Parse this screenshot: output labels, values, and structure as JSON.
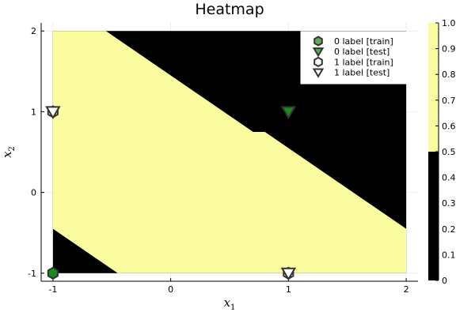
{
  "chart_data": {
    "type": "heatmap",
    "title": "Heatmap",
    "xlabel_base": "x",
    "xlabel_sub": "1",
    "ylabel_base": "x",
    "ylabel_sub": "2",
    "xlim": [
      -1.1,
      2.1
    ],
    "ylim": [
      -1.1,
      2.1
    ],
    "xticks": [
      -1,
      0,
      1,
      2
    ],
    "yticks": [
      -1,
      0,
      1,
      2
    ],
    "grid": true,
    "heatmap": {
      "domain_x": [
        -1,
        2
      ],
      "domain_y": [
        -1,
        2
      ],
      "background_value": 0,
      "regions": [
        {
          "value": 1,
          "polygon": [
            [
              -1,
              2
            ],
            [
              -0.55,
              2
            ],
            [
              0.7,
              0.75
            ],
            [
              0.8,
              0.75
            ],
            [
              2,
              -0.45
            ],
            [
              2,
              -1
            ],
            [
              -0.45,
              -1
            ],
            [
              -1,
              -0.45
            ]
          ]
        }
      ]
    },
    "colorbar": {
      "min": 0,
      "max": 1,
      "ticks": [
        0,
        0.1,
        0.2,
        0.3,
        0.4,
        0.5,
        0.6,
        0.7,
        0.8,
        0.9,
        1.0
      ],
      "tick_labels": [
        "0",
        "0.1",
        "0.2",
        "0.3",
        "0.4",
        "0.5",
        "0.6",
        "0.7",
        "0.8",
        "0.9",
        "1.0"
      ],
      "levels": [
        {
          "from": 0,
          "to": 0.5,
          "color": "#000000"
        },
        {
          "from": 0.5,
          "to": 1.0,
          "color": "#fbfca0"
        }
      ]
    },
    "series": [
      {
        "name": "0 label [train]",
        "marker": "hexagon",
        "color": "#1a8a1a",
        "points": [
          {
            "x": -1,
            "y": -1
          }
        ]
      },
      {
        "name": "0 label [test]",
        "marker": "triangle-down",
        "color": "#1a8a1a",
        "points": [
          {
            "x": 1,
            "y": 1
          }
        ]
      },
      {
        "name": "1 label [train]",
        "marker": "hexagon",
        "color": "#ffffff",
        "points": [
          {
            "x": -1,
            "y": 1
          },
          {
            "x": 1,
            "y": -1
          }
        ]
      },
      {
        "name": "1 label [test]",
        "marker": "triangle-down",
        "color": "#ffffff",
        "points": [
          {
            "x": -1,
            "y": 1
          },
          {
            "x": 1,
            "y": -1
          }
        ]
      }
    ],
    "legend_position": "top-right",
    "colors": {
      "region_low": "#000000",
      "region_high": "#fbfca0",
      "class0": "#1a8a1a",
      "class1": "#ffffff",
      "marker_stroke": "#333333"
    }
  }
}
